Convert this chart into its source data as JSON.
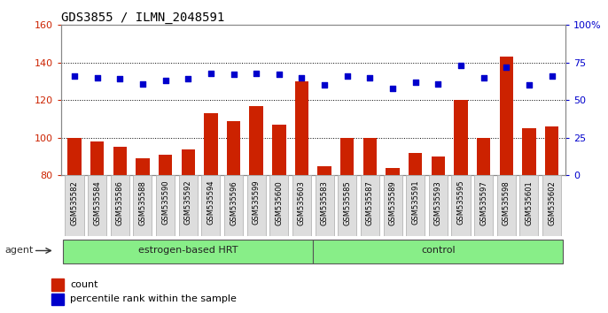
{
  "title": "GDS3855 / ILMN_2048591",
  "samples": [
    "GSM535582",
    "GSM535584",
    "GSM535586",
    "GSM535588",
    "GSM535590",
    "GSM535592",
    "GSM535594",
    "GSM535596",
    "GSM535599",
    "GSM535600",
    "GSM535603",
    "GSM535583",
    "GSM535585",
    "GSM535587",
    "GSM535589",
    "GSM535591",
    "GSM535593",
    "GSM535595",
    "GSM535597",
    "GSM535598",
    "GSM535601",
    "GSM535602"
  ],
  "count_values": [
    100,
    98,
    95,
    89,
    91,
    94,
    113,
    109,
    117,
    107,
    130,
    85,
    100,
    100,
    84,
    92,
    90,
    120,
    100,
    143,
    105,
    106
  ],
  "percentile_values": [
    66,
    65,
    64,
    61,
    63,
    64,
    68,
    67,
    68,
    67,
    65,
    60,
    66,
    65,
    58,
    62,
    61,
    73,
    65,
    72,
    60,
    66
  ],
  "group1_label": "estrogen-based HRT",
  "group2_label": "control",
  "group1_count": 11,
  "group2_count": 11,
  "ylim_left": [
    80,
    160
  ],
  "ylim_right": [
    0,
    100
  ],
  "yticks_left": [
    80,
    100,
    120,
    140,
    160
  ],
  "yticks_right": [
    0,
    25,
    50,
    75,
    100
  ],
  "bar_color": "#cc2200",
  "dot_color": "#0000cc",
  "group_color": "#88ee88",
  "grid_color": "#000000",
  "background_color": "#ffffff",
  "tick_color_left": "#cc2200",
  "tick_color_right": "#0000cc",
  "legend_count_label": "count",
  "legend_pct_label": "percentile rank within the sample",
  "title_fontsize": 10,
  "agent_label": "agent"
}
